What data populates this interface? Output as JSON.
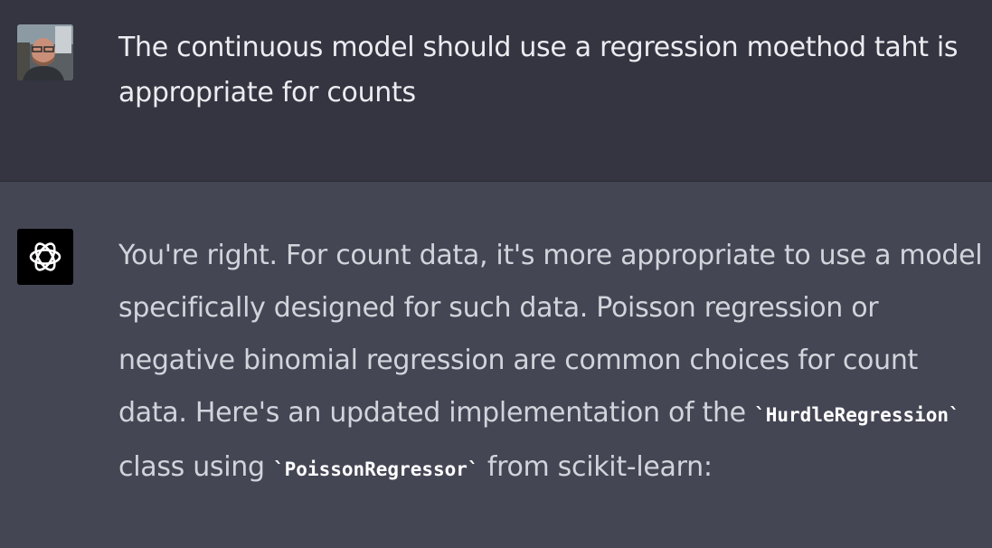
{
  "conversation": {
    "user_message": {
      "avatar_icon": "user-photo-avatar",
      "text": "The continuous model should use a regression moethod taht is appropriate for counts"
    },
    "assistant_message": {
      "avatar_icon": "openai-logo-icon",
      "text_part1": "You're right. For count data, it's more appropriate to use a model specifically designed for such data. Poisson regression or negative binomial regression are common choices for count data. Here's an updated implementation of the",
      "code1": "`HurdleRegression`",
      "text_part2": "class using",
      "code2": "`PoissonRegressor`",
      "text_part3": "from scikit-learn:"
    }
  },
  "colors": {
    "user_bg": "#343541",
    "assistant_bg": "#444654",
    "text": "#ececf1",
    "bot_avatar_bg": "#000000"
  }
}
